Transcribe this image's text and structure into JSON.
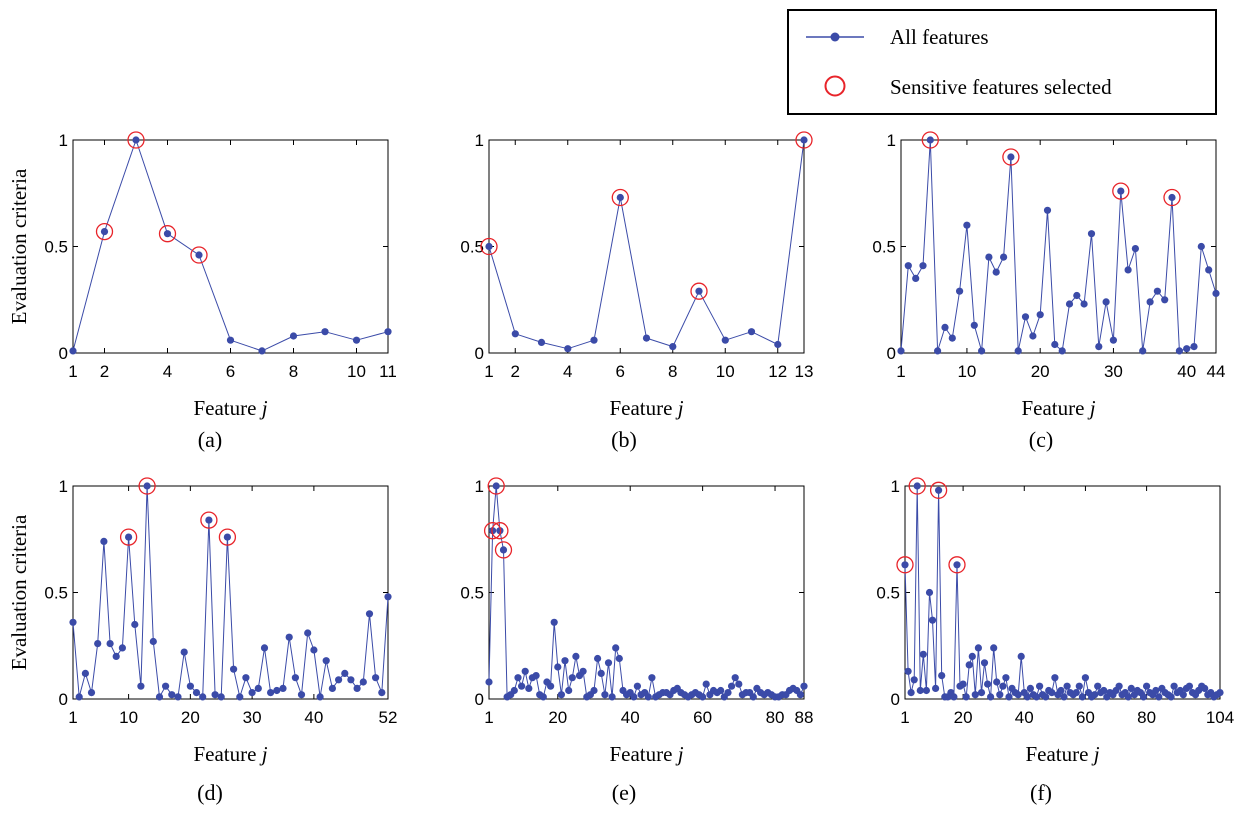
{
  "legend": {
    "all_label": "All features",
    "sel_label": "Sensitive features selected",
    "line_color": "#3b4ba8",
    "circle_color": "#e8242a"
  },
  "chart_data": [
    {
      "type": "line",
      "panel": "(a)",
      "xlabel_text": "Feature",
      "xlabel_var": "j",
      "ylabel": "Evaluation criteria",
      "xlim": [
        1,
        11
      ],
      "ylim": [
        0,
        1
      ],
      "xticks": [
        1,
        2,
        4,
        6,
        8,
        10,
        11
      ],
      "yticks": [
        {
          "v": 0,
          "t": "0"
        },
        {
          "v": 0.5,
          "t": "0.5"
        },
        {
          "v": 1,
          "t": "1"
        }
      ],
      "series": [
        {
          "name": "All features",
          "x": [
            1,
            2,
            3,
            4,
            5,
            6,
            7,
            8,
            9,
            10,
            11
          ],
          "y": [
            0.01,
            0.57,
            1.0,
            0.56,
            0.46,
            0.06,
            0.01,
            0.08,
            0.1,
            0.06,
            0.1
          ]
        }
      ],
      "selected": [
        2,
        3,
        4,
        5
      ]
    },
    {
      "type": "line",
      "panel": "(b)",
      "xlabel_text": "Feature",
      "xlabel_var": "j",
      "ylabel": "",
      "xlim": [
        1,
        13
      ],
      "ylim": [
        0,
        1
      ],
      "xticks": [
        1,
        2,
        4,
        6,
        8,
        10,
        12,
        13
      ],
      "yticks": [
        {
          "v": 0,
          "t": "0"
        },
        {
          "v": 0.5,
          "t": "0.5"
        },
        {
          "v": 1,
          "t": "1"
        }
      ],
      "series": [
        {
          "name": "All features",
          "x": [
            1,
            2,
            3,
            4,
            5,
            6,
            7,
            8,
            9,
            10,
            11,
            12,
            13
          ],
          "y": [
            0.5,
            0.09,
            0.05,
            0.02,
            0.06,
            0.73,
            0.07,
            0.03,
            0.29,
            0.06,
            0.1,
            0.04,
            1.0
          ]
        }
      ],
      "selected": [
        1,
        6,
        9,
        13
      ]
    },
    {
      "type": "line",
      "panel": "(c)",
      "xlabel_text": "Feature",
      "xlabel_var": "j",
      "ylabel": "",
      "xlim": [
        1,
        44
      ],
      "ylim": [
        0,
        1
      ],
      "xticks": [
        1,
        10,
        20,
        30,
        40,
        44
      ],
      "yticks": [
        {
          "v": 0,
          "t": "0"
        },
        {
          "v": 0.5,
          "t": "0.5"
        },
        {
          "v": 1,
          "t": "1"
        }
      ],
      "series": [
        {
          "name": "All features",
          "x": [
            1,
            2,
            3,
            4,
            5,
            6,
            7,
            8,
            9,
            10,
            11,
            12,
            13,
            14,
            15,
            16,
            17,
            18,
            19,
            20,
            21,
            22,
            23,
            24,
            25,
            26,
            27,
            28,
            29,
            30,
            31,
            32,
            33,
            34,
            35,
            36,
            37,
            38,
            39,
            40,
            41,
            42,
            43,
            44
          ],
          "y": [
            0.01,
            0.41,
            0.35,
            0.41,
            1.0,
            0.01,
            0.12,
            0.07,
            0.29,
            0.6,
            0.13,
            0.01,
            0.45,
            0.38,
            0.45,
            0.92,
            0.01,
            0.17,
            0.08,
            0.18,
            0.67,
            0.04,
            0.01,
            0.23,
            0.27,
            0.23,
            0.56,
            0.03,
            0.24,
            0.06,
            0.76,
            0.39,
            0.49,
            0.01,
            0.24,
            0.29,
            0.25,
            0.73,
            0.01,
            0.02,
            0.03,
            0.5,
            0.39,
            0.28
          ]
        }
      ],
      "selected": [
        5,
        16,
        31,
        38
      ]
    },
    {
      "type": "line",
      "panel": "(d)",
      "xlabel_text": "Feature",
      "xlabel_var": "j",
      "ylabel": "Evaluation criteria",
      "xlim": [
        1,
        52
      ],
      "ylim": [
        0,
        1
      ],
      "xticks": [
        1,
        10,
        20,
        30,
        40,
        52
      ],
      "yticks": [
        {
          "v": 0,
          "t": "0"
        },
        {
          "v": 0.5,
          "t": "0.5"
        },
        {
          "v": 1,
          "t": "1"
        }
      ],
      "series": [
        {
          "name": "All features",
          "x": [
            1,
            2,
            3,
            4,
            5,
            6,
            7,
            8,
            9,
            10,
            11,
            12,
            13,
            14,
            15,
            16,
            17,
            18,
            19,
            20,
            21,
            22,
            23,
            24,
            25,
            26,
            27,
            28,
            29,
            30,
            31,
            32,
            33,
            34,
            35,
            36,
            37,
            38,
            39,
            40,
            41,
            42,
            43,
            44,
            45,
            46,
            47,
            48,
            49,
            50,
            51,
            52
          ],
          "y": [
            0.36,
            0.01,
            0.12,
            0.03,
            0.26,
            0.74,
            0.26,
            0.2,
            0.24,
            0.76,
            0.35,
            0.06,
            1.0,
            0.27,
            0.01,
            0.06,
            0.02,
            0.01,
            0.22,
            0.06,
            0.03,
            0.01,
            0.84,
            0.02,
            0.01,
            0.76,
            0.14,
            0.01,
            0.1,
            0.03,
            0.05,
            0.24,
            0.03,
            0.04,
            0.05,
            0.29,
            0.1,
            0.02,
            0.31,
            0.23,
            0.01,
            0.18,
            0.05,
            0.09,
            0.12,
            0.09,
            0.05,
            0.08,
            0.4,
            0.1,
            0.03,
            0.48
          ]
        }
      ],
      "selected": [
        10,
        13,
        23,
        26
      ]
    },
    {
      "type": "line",
      "panel": "(e)",
      "xlabel_text": "Feature",
      "xlabel_var": "j",
      "ylabel": "",
      "xlim": [
        1,
        88
      ],
      "ylim": [
        0,
        1
      ],
      "xticks": [
        1,
        20,
        40,
        60,
        80,
        88
      ],
      "yticks": [
        {
          "v": 0,
          "t": "0"
        },
        {
          "v": 0.5,
          "t": "0.5"
        },
        {
          "v": 1,
          "t": "1"
        }
      ],
      "series": [
        {
          "name": "All features",
          "x": [
            1,
            2,
            3,
            4,
            5,
            6,
            7,
            8,
            9,
            10,
            11,
            12,
            13,
            14,
            15,
            16,
            17,
            18,
            19,
            20,
            21,
            22,
            23,
            24,
            25,
            26,
            27,
            28,
            29,
            30,
            31,
            32,
            33,
            34,
            35,
            36,
            37,
            38,
            39,
            40,
            41,
            42,
            43,
            44,
            45,
            46,
            47,
            48,
            49,
            50,
            51,
            52,
            53,
            54,
            55,
            56,
            57,
            58,
            59,
            60,
            61,
            62,
            63,
            64,
            65,
            66,
            67,
            68,
            69,
            70,
            71,
            72,
            73,
            74,
            75,
            76,
            77,
            78,
            79,
            80,
            81,
            82,
            83,
            84,
            85,
            86,
            87,
            88
          ],
          "y": [
            0.08,
            0.79,
            1.0,
            0.79,
            0.7,
            0.01,
            0.02,
            0.04,
            0.1,
            0.06,
            0.13,
            0.05,
            0.1,
            0.11,
            0.02,
            0.01,
            0.08,
            0.06,
            0.36,
            0.15,
            0.02,
            0.18,
            0.04,
            0.1,
            0.2,
            0.11,
            0.13,
            0.01,
            0.02,
            0.04,
            0.19,
            0.12,
            0.02,
            0.17,
            0.01,
            0.24,
            0.19,
            0.04,
            0.02,
            0.03,
            0.01,
            0.06,
            0.02,
            0.03,
            0.01,
            0.1,
            0.01,
            0.02,
            0.03,
            0.03,
            0.02,
            0.04,
            0.05,
            0.03,
            0.02,
            0.01,
            0.02,
            0.03,
            0.02,
            0.01,
            0.07,
            0.02,
            0.04,
            0.03,
            0.04,
            0.01,
            0.03,
            0.06,
            0.1,
            0.07,
            0.02,
            0.03,
            0.03,
            0.01,
            0.05,
            0.03,
            0.02,
            0.03,
            0.02,
            0.01,
            0.01,
            0.02,
            0.02,
            0.04,
            0.05,
            0.04,
            0.02,
            0.06
          ]
        }
      ],
      "selected": [
        2,
        3,
        4,
        5
      ]
    },
    {
      "type": "line",
      "panel": "(f)",
      "xlabel_text": "Feature",
      "xlabel_var": "j",
      "ylabel": "",
      "xlim": [
        1,
        104
      ],
      "ylim": [
        0,
        1
      ],
      "xticks": [
        1,
        20,
        40,
        60,
        80,
        104
      ],
      "yticks": [
        {
          "v": 0,
          "t": "0"
        },
        {
          "v": 0.5,
          "t": "0.5"
        },
        {
          "v": 1,
          "t": "1"
        }
      ],
      "series": [
        {
          "name": "All features",
          "x": [
            1,
            2,
            3,
            4,
            5,
            6,
            7,
            8,
            9,
            10,
            11,
            12,
            13,
            14,
            15,
            16,
            17,
            18,
            19,
            20,
            21,
            22,
            23,
            24,
            25,
            26,
            27,
            28,
            29,
            30,
            31,
            32,
            33,
            34,
            35,
            36,
            37,
            38,
            39,
            40,
            41,
            42,
            43,
            44,
            45,
            46,
            47,
            48,
            49,
            50,
            51,
            52,
            53,
            54,
            55,
            56,
            57,
            58,
            59,
            60,
            61,
            62,
            63,
            64,
            65,
            66,
            67,
            68,
            69,
            70,
            71,
            72,
            73,
            74,
            75,
            76,
            77,
            78,
            79,
            80,
            81,
            82,
            83,
            84,
            85,
            86,
            87,
            88,
            89,
            90,
            91,
            92,
            93,
            94,
            95,
            96,
            97,
            98,
            99,
            100,
            101,
            102,
            103,
            104
          ],
          "y": [
            0.63,
            0.13,
            0.03,
            0.09,
            1.0,
            0.04,
            0.21,
            0.04,
            0.5,
            0.37,
            0.05,
            0.98,
            0.11,
            0.01,
            0.01,
            0.03,
            0.01,
            0.63,
            0.06,
            0.07,
            0.01,
            0.16,
            0.2,
            0.02,
            0.24,
            0.03,
            0.17,
            0.07,
            0.01,
            0.24,
            0.08,
            0.02,
            0.06,
            0.1,
            0.01,
            0.05,
            0.03,
            0.02,
            0.2,
            0.03,
            0.01,
            0.05,
            0.02,
            0.01,
            0.06,
            0.02,
            0.01,
            0.04,
            0.03,
            0.1,
            0.02,
            0.04,
            0.01,
            0.06,
            0.03,
            0.02,
            0.03,
            0.06,
            0.01,
            0.1,
            0.03,
            0.01,
            0.02,
            0.06,
            0.03,
            0.04,
            0.01,
            0.03,
            0.02,
            0.04,
            0.06,
            0.02,
            0.03,
            0.01,
            0.05,
            0.02,
            0.04,
            0.03,
            0.01,
            0.06,
            0.03,
            0.02,
            0.04,
            0.01,
            0.05,
            0.03,
            0.02,
            0.01,
            0.06,
            0.03,
            0.04,
            0.02,
            0.05,
            0.06,
            0.03,
            0.02,
            0.04,
            0.06,
            0.05,
            0.02,
            0.03,
            0.01,
            0.02,
            0.03
          ]
        }
      ],
      "selected": [
        1,
        5,
        12,
        18
      ]
    }
  ]
}
